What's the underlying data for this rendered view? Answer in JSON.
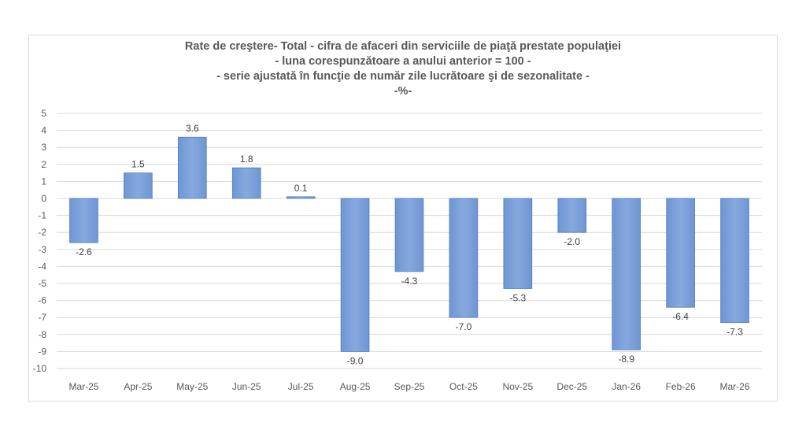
{
  "chart_data": {
    "type": "bar",
    "title_lines": [
      "Rate de creştere- Total -  cifra de afaceri din serviciile de piaţă prestate populaţiei",
      "- luna corespunzătoare a anului anterior = 100 -",
      "- serie ajustată în funcţie de număr zile lucrătoare şi de sezonalitate -",
      "-%-"
    ],
    "categories": [
      "Mar-25",
      "Apr-25",
      "May-25",
      "Jun-25",
      "Jul-25",
      "Aug-25",
      "Sep-25",
      "Oct-25",
      "Nov-25",
      "Dec-25",
      "Jan-26",
      "Feb-26",
      "Mar-26"
    ],
    "values": [
      -2.6,
      1.5,
      3.6,
      1.8,
      0.1,
      -9.0,
      -4.3,
      -7.0,
      -5.3,
      -2.0,
      -8.9,
      -6.4,
      -7.3
    ],
    "data_labels": [
      "-2.6",
      "1.5",
      "3.6",
      "1.8",
      "0.1",
      "-9.0",
      "-4.3",
      "-7.0",
      "-5.3",
      "-2.0",
      "-8.9",
      "-6.4",
      "-7.3"
    ],
    "ylim": [
      -10,
      5
    ],
    "yticks": [
      5,
      4,
      3,
      2,
      1,
      0,
      -1,
      -2,
      -3,
      -4,
      -5,
      -6,
      -7,
      -8,
      -9,
      -10
    ],
    "grid": true,
    "legend": "none",
    "colors": {
      "bar": "#7a9fd8",
      "bar_edge": "#4f7fc7",
      "grid": "#d9d9d9",
      "text": "#595959"
    }
  }
}
